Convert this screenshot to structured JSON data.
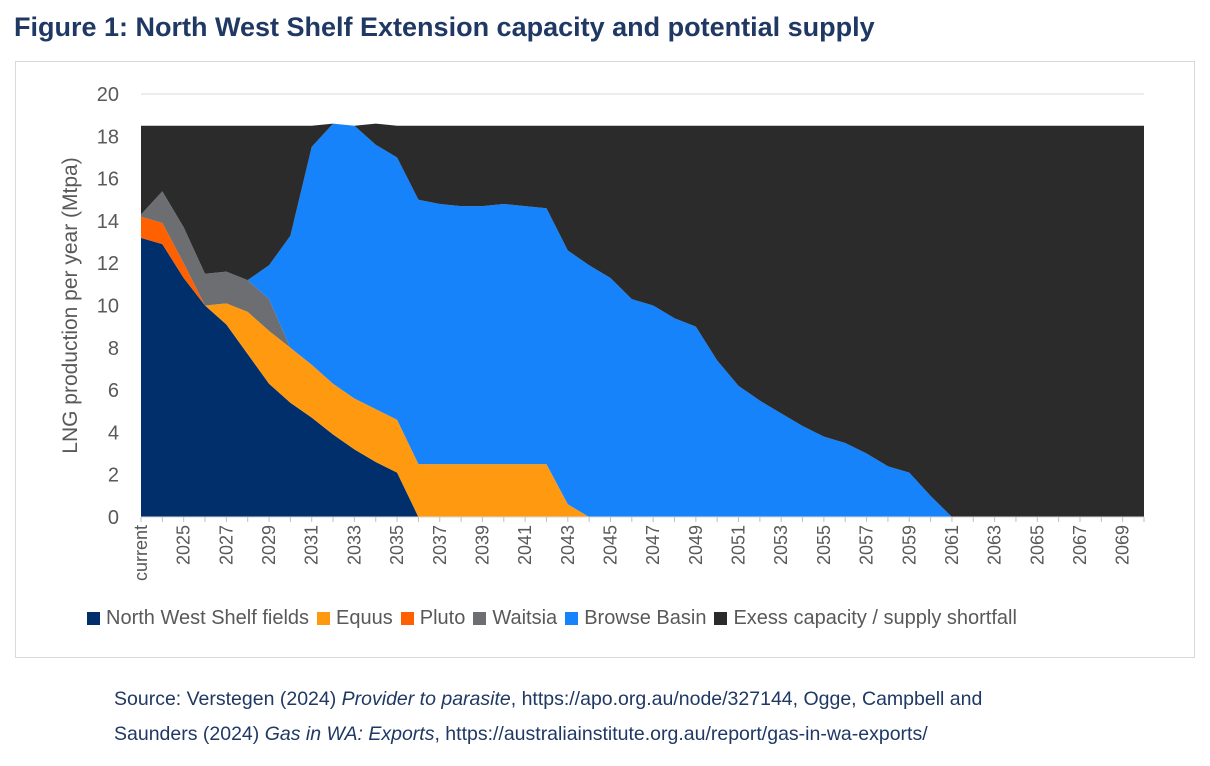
{
  "figure_title": "Figure 1: North West Shelf Extension capacity and potential supply",
  "source": {
    "prefix": "Source: Verstegen (2024) ",
    "title1": "Provider to parasite",
    "mid1": ", https://apo.org.au/node/327144, Ogge, Campbell and",
    "mid2": "Saunders (2024) ",
    "title2": "Gas in WA: Exports",
    "suffix": ", https://australiainstitute.org.au/report/gas-in-wa-exports/"
  },
  "chart_data": {
    "type": "area",
    "stacked": true,
    "title": "",
    "ylabel": "LNG production per year (Mtpa)",
    "xlabel": "",
    "ylim": [
      0,
      20
    ],
    "yticks": [
      0,
      2,
      4,
      6,
      8,
      10,
      12,
      14,
      16,
      18,
      20
    ],
    "grid": true,
    "legend_position": "bottom",
    "x": [
      "current",
      "2024",
      "2025",
      "2026",
      "2027",
      "2028",
      "2029",
      "2030",
      "2031",
      "2032",
      "2033",
      "2034",
      "2035",
      "2036",
      "2037",
      "2038",
      "2039",
      "2040",
      "2041",
      "2042",
      "2043",
      "2044",
      "2045",
      "2046",
      "2047",
      "2048",
      "2049",
      "2050",
      "2051",
      "2052",
      "2053",
      "2054",
      "2055",
      "2056",
      "2057",
      "2058",
      "2059",
      "2060",
      "2061",
      "2062",
      "2063",
      "2064",
      "2065",
      "2066",
      "2067",
      "2068",
      "2069",
      "2070"
    ],
    "x_tick_labels": [
      "current",
      "2025",
      "2027",
      "2029",
      "2031",
      "2033",
      "2035",
      "2037",
      "2039",
      "2041",
      "2043",
      "2045",
      "2047",
      "2049",
      "2051",
      "2053",
      "2055",
      "2057",
      "2059",
      "2061",
      "2063",
      "2065",
      "2067",
      "2069"
    ],
    "capacity": 18.5,
    "series": [
      {
        "name": "North West Shelf fields",
        "color": "#002f6c",
        "values": [
          13.2,
          12.9,
          11.3,
          10.0,
          9.1,
          7.7,
          6.3,
          5.4,
          4.7,
          3.9,
          3.2,
          2.6,
          2.1,
          0,
          0,
          0,
          0,
          0,
          0,
          0,
          0,
          0,
          0,
          0,
          0,
          0,
          0,
          0,
          0,
          0,
          0,
          0,
          0,
          0,
          0,
          0,
          0,
          0,
          0,
          0,
          0,
          0,
          0,
          0,
          0,
          0,
          0,
          0
        ]
      },
      {
        "name": "Equus",
        "color": "#ff9a10",
        "values": [
          0,
          0,
          0,
          0,
          1.0,
          2.0,
          2.5,
          2.6,
          2.5,
          2.4,
          2.4,
          2.5,
          2.5,
          2.5,
          2.5,
          2.5,
          2.5,
          2.5,
          2.5,
          2.5,
          0.6,
          0,
          0,
          0,
          0,
          0,
          0,
          0,
          0,
          0,
          0,
          0,
          0,
          0,
          0,
          0,
          0,
          0,
          0,
          0,
          0,
          0,
          0,
          0,
          0,
          0,
          0,
          0
        ]
      },
      {
        "name": "Pluto",
        "color": "#ff6000",
        "values": [
          1.0,
          1.0,
          0.7,
          0,
          0,
          0,
          0,
          0,
          0,
          0,
          0,
          0,
          0,
          0,
          0,
          0,
          0,
          0,
          0,
          0,
          0,
          0,
          0,
          0,
          0,
          0,
          0,
          0,
          0,
          0,
          0,
          0,
          0,
          0,
          0,
          0,
          0,
          0,
          0,
          0,
          0,
          0,
          0,
          0,
          0,
          0,
          0,
          0
        ]
      },
      {
        "name": "Waitsia",
        "color": "#6d6e71",
        "values": [
          0.1,
          1.5,
          1.7,
          1.5,
          1.5,
          1.5,
          1.5,
          0,
          0,
          0,
          0,
          0,
          0,
          0,
          0,
          0,
          0,
          0,
          0,
          0,
          0,
          0,
          0,
          0,
          0,
          0,
          0,
          0,
          0,
          0,
          0,
          0,
          0,
          0,
          0,
          0,
          0,
          0,
          0,
          0,
          0,
          0,
          0,
          0,
          0,
          0,
          0,
          0
        ]
      },
      {
        "name": "Browse Basin",
        "color": "#1683fb",
        "values": [
          0,
          0,
          0,
          0,
          0,
          0,
          1.6,
          5.3,
          10.3,
          12.3,
          12.9,
          12.5,
          12.4,
          12.5,
          12.3,
          12.2,
          12.2,
          12.3,
          12.2,
          12.1,
          12.0,
          11.9,
          11.3,
          10.3,
          10.0,
          9.4,
          9.0,
          7.4,
          6.2,
          5.5,
          4.9,
          4.3,
          3.8,
          3.5,
          3.0,
          2.4,
          2.1,
          1.0,
          0,
          0,
          0,
          0,
          0,
          0,
          0,
          0,
          0,
          0
        ]
      },
      {
        "name": "Exess capacity / supply shortfall",
        "color": "#2b2b2b",
        "values": [
          4.2,
          3.1,
          4.8,
          7.0,
          6.9,
          7.3,
          6.6,
          5.2,
          1.0,
          0,
          0,
          1.0,
          1.5,
          3.5,
          3.7,
          3.8,
          3.8,
          3.7,
          3.8,
          3.9,
          5.9,
          6.6,
          7.2,
          8.2,
          8.5,
          9.1,
          9.5,
          11.1,
          12.3,
          13.0,
          13.6,
          14.2,
          14.7,
          15.0,
          15.5,
          16.1,
          16.4,
          17.5,
          18.5,
          18.5,
          18.5,
          18.5,
          18.5,
          18.5,
          18.5,
          18.5,
          18.5,
          18.5
        ]
      }
    ]
  }
}
